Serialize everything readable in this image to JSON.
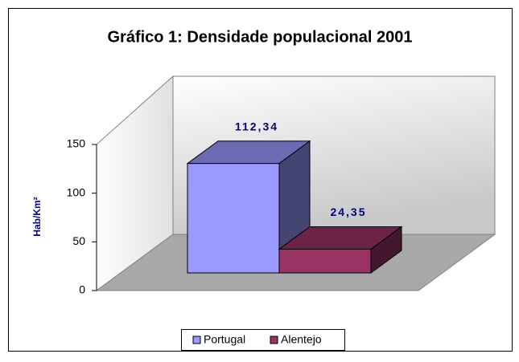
{
  "chart_data": {
    "type": "bar3d",
    "title": "Gráfico 1: Densidade populacional 2001",
    "ylabel": "Hab/Km²",
    "categories": [
      null
    ],
    "series": [
      {
        "name": "Portugal",
        "color": "#9999ff",
        "values": [
          112.34
        ],
        "value_labels": [
          "112,34"
        ]
      },
      {
        "name": "Alentejo",
        "color": "#993366",
        "values": [
          24.35
        ],
        "value_labels": [
          "24,35"
        ]
      }
    ],
    "ylim": [
      0,
      150
    ],
    "yticks": [
      0,
      50,
      100,
      150
    ],
    "legend": "bottom"
  }
}
